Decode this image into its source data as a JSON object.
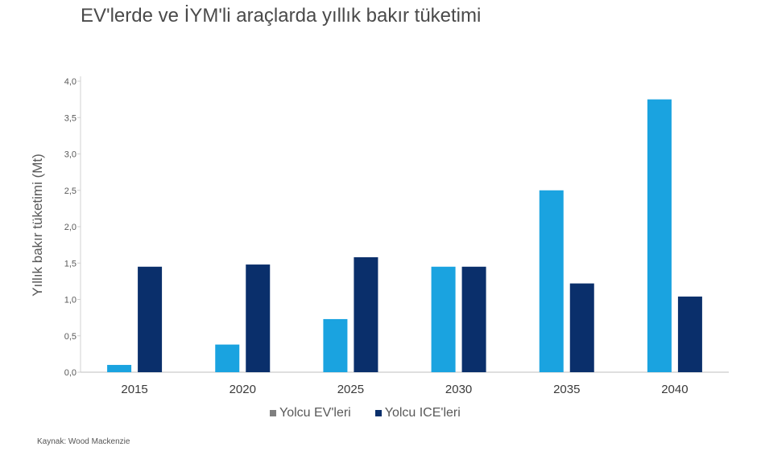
{
  "title": "EV'lerde ve İYM'li araçlarda yıllık bakır tüketimi",
  "source": "Kaynak: Wood Mackenzie",
  "chart_data": {
    "type": "bar",
    "categories": [
      "2015",
      "2020",
      "2025",
      "2030",
      "2035",
      "2040"
    ],
    "series": [
      {
        "name": "Yolcu EV'leri",
        "color": "#1aa3e0",
        "values": [
          0.1,
          0.38,
          0.73,
          1.45,
          2.5,
          3.75
        ]
      },
      {
        "name": "Yolcu ICE'leri",
        "color": "#0a2f6b",
        "values": [
          1.45,
          1.48,
          1.58,
          1.45,
          1.22,
          1.04
        ]
      }
    ],
    "yticks": [
      "0,0",
      "0,5",
      "1,0",
      "1,5",
      "2,0",
      "2,5",
      "3,0",
      "3,5",
      "4,0"
    ],
    "ylim": [
      0,
      4
    ],
    "ylabel": "Yıllık bakır tüketimi (Mt)",
    "xlabel": "",
    "legend_position": "bottom",
    "grid": false
  }
}
